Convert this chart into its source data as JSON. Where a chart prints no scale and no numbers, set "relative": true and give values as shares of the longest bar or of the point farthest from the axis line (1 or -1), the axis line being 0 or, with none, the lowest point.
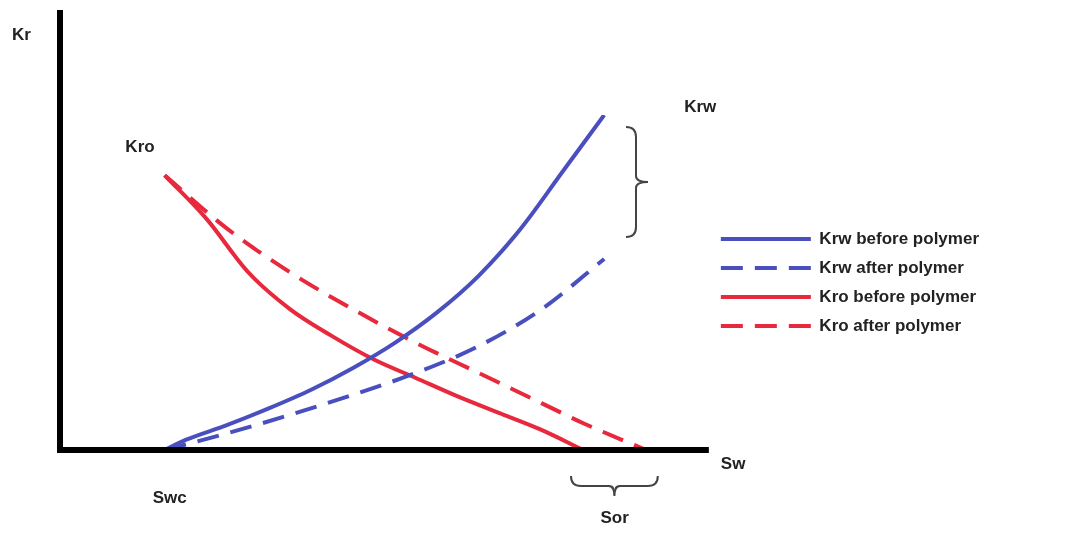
{
  "chart_data": {
    "type": "line",
    "relative": true,
    "xlabel": "Sw",
    "ylabel": "Kr",
    "categories": [
      null,
      null,
      null,
      null,
      null,
      null,
      null,
      null,
      null,
      null,
      null,
      null,
      null,
      null,
      null,
      null,
      null,
      null,
      null,
      null,
      null,
      null,
      null,
      null,
      null,
      null,
      null,
      null,
      null,
      null,
      null,
      null
    ],
    "series": [
      {
        "name": "Krw before polymer",
        "color": "#4a4fbf",
        "line_style": "solid",
        "values": [
          null,
          null,
          null,
          null,
          null,
          0,
          0.03,
          null,
          0.075,
          null,
          0.125,
          null,
          0.18,
          null,
          0.245,
          null,
          0.32,
          null,
          0.41,
          null,
          0.52,
          null,
          0.66,
          null,
          0.83,
          null,
          1.0,
          null,
          null,
          null,
          null,
          null
        ]
      },
      {
        "name": "Krw after polymer",
        "color": "#4a4fbf",
        "line_style": "dashed",
        "values": [
          null,
          null,
          null,
          null,
          null,
          0,
          null,
          null,
          0.05,
          null,
          null,
          0.105,
          null,
          null,
          0.165,
          null,
          null,
          0.23,
          null,
          null,
          0.31,
          null,
          null,
          0.42,
          null,
          null,
          0.57,
          null,
          null,
          null,
          null,
          null
        ]
      },
      {
        "name": "Kro before polymer",
        "color": "#e8283c",
        "line_style": "solid",
        "values": [
          null,
          null,
          null,
          null,
          null,
          0.82,
          null,
          0.69,
          null,
          0.53,
          null,
          0.42,
          null,
          0.34,
          null,
          0.27,
          null,
          0.215,
          null,
          0.16,
          null,
          0.11,
          null,
          0.06,
          null,
          0,
          null,
          null,
          null,
          null,
          null,
          null
        ]
      },
      {
        "name": "Kro after polymer",
        "color": "#e8283c",
        "line_style": "dashed",
        "values": [
          null,
          null,
          null,
          null,
          null,
          0.82,
          null,
          null,
          0.66,
          null,
          null,
          0.53,
          null,
          null,
          0.42,
          null,
          null,
          0.32,
          null,
          null,
          0.23,
          null,
          null,
          0.14,
          null,
          0.08,
          null,
          null,
          0,
          null,
          null,
          null
        ]
      }
    ],
    "legend": "right",
    "grid": false,
    "tick_labels": false,
    "annotations": [
      "Kro",
      "Krw",
      "Swc",
      "Sor"
    ]
  }
}
